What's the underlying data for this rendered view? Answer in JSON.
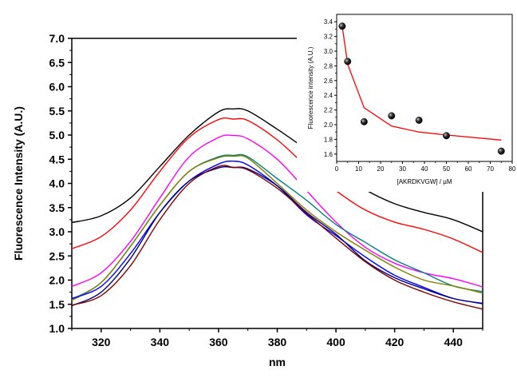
{
  "chart_data": [
    {
      "type": "line",
      "title": "",
      "xlabel": "nm",
      "ylabel": "Fluorescence Intensity (A.U.)",
      "xlim": [
        310,
        450
      ],
      "ylim": [
        1.0,
        7.0
      ],
      "x_ticks": [
        "320",
        "340",
        "360",
        "380",
        "400",
        "420",
        "440"
      ],
      "y_ticks": [
        "1.0",
        "1.5",
        "2.0",
        "2.5",
        "3.0",
        "3.5",
        "4.0",
        "4.5",
        "5.0",
        "5.5",
        "6.0",
        "6.5",
        "7.0"
      ],
      "x_tick_values": [
        320,
        340,
        360,
        380,
        400,
        420,
        440
      ],
      "y_tick_values": [
        1.0,
        1.5,
        2.0,
        2.5,
        3.0,
        3.5,
        4.0,
        4.5,
        5.0,
        5.5,
        6.0,
        6.5,
        7.0
      ],
      "grid": false,
      "legend": false,
      "x": [
        310,
        320,
        330,
        340,
        350,
        360,
        365,
        370,
        380,
        390,
        400,
        410,
        420,
        430,
        440,
        450
      ],
      "series": [
        {
          "color": "#000000",
          "values": [
            3.19,
            3.33,
            3.7,
            4.35,
            5.0,
            5.48,
            5.54,
            5.5,
            5.12,
            4.7,
            4.28,
            3.87,
            3.58,
            3.4,
            3.25,
            3.0
          ]
        },
        {
          "color": "#ff0000",
          "values": [
            2.65,
            2.9,
            3.45,
            4.25,
            4.95,
            5.32,
            5.33,
            5.3,
            4.9,
            4.35,
            3.85,
            3.45,
            3.2,
            3.05,
            2.85,
            2.57
          ]
        },
        {
          "color": "#ff00ff",
          "values": [
            1.87,
            2.15,
            2.8,
            3.7,
            4.55,
            4.95,
            4.99,
            4.92,
            4.5,
            3.85,
            3.2,
            2.68,
            2.35,
            2.15,
            2.03,
            1.86
          ]
        },
        {
          "color": "#008080",
          "values": [
            1.6,
            1.95,
            2.7,
            3.55,
            4.25,
            4.55,
            4.58,
            4.55,
            4.1,
            3.65,
            3.15,
            2.78,
            2.42,
            2.15,
            1.88,
            1.76
          ]
        },
        {
          "color": "#808000",
          "values": [
            1.58,
            1.95,
            2.7,
            3.55,
            4.25,
            4.53,
            4.56,
            4.52,
            4.0,
            3.45,
            3.0,
            2.62,
            2.27,
            2.0,
            1.88,
            1.73
          ]
        },
        {
          "color": "#0000ff",
          "values": [
            1.62,
            1.87,
            2.55,
            3.4,
            4.05,
            4.4,
            4.46,
            4.38,
            3.95,
            3.35,
            2.92,
            2.48,
            2.1,
            1.85,
            1.62,
            1.52
          ]
        },
        {
          "color": "#000080",
          "values": [
            1.47,
            1.75,
            2.45,
            3.4,
            4.05,
            4.32,
            4.33,
            4.3,
            3.95,
            3.4,
            2.95,
            2.4,
            2.05,
            1.82,
            1.62,
            1.51
          ]
        },
        {
          "color": "#800000",
          "values": [
            1.48,
            1.68,
            2.3,
            3.25,
            4.0,
            4.35,
            4.33,
            4.28,
            3.9,
            3.38,
            2.87,
            2.38,
            2.0,
            1.75,
            1.55,
            1.4
          ]
        }
      ]
    },
    {
      "type": "scatter",
      "title": "",
      "xlabel": "[AKRDKVGW] / µM",
      "ylabel": "Fluorescence intensity (A.U.)",
      "xlim": [
        0,
        80
      ],
      "ylim": [
        1.5,
        3.5
      ],
      "x_ticks": [
        "0",
        "10",
        "20",
        "30",
        "40",
        "50",
        "60",
        "70",
        "80"
      ],
      "y_ticks": [
        "1.6",
        "1.8",
        "2.0",
        "2.2",
        "2.4",
        "2.6",
        "2.8",
        "3.0",
        "3.2",
        "3.4"
      ],
      "x_tick_values": [
        0,
        10,
        20,
        30,
        40,
        50,
        60,
        70,
        80
      ],
      "y_tick_values": [
        1.6,
        1.8,
        2.0,
        2.2,
        2.4,
        2.6,
        2.8,
        3.0,
        3.2,
        3.4
      ],
      "grid": false,
      "points": {
        "x": [
          2.5,
          5,
          12.5,
          25,
          37.5,
          50,
          75
        ],
        "y": [
          3.34,
          2.86,
          2.04,
          2.12,
          2.06,
          1.85,
          1.64
        ],
        "color": "#000000"
      },
      "fit": {
        "x": [
          2.5,
          5,
          12.5,
          25,
          37.5,
          50,
          75
        ],
        "y": [
          3.34,
          2.82,
          2.23,
          1.98,
          1.9,
          1.86,
          1.79
        ],
        "color": "#ff0000"
      }
    }
  ]
}
